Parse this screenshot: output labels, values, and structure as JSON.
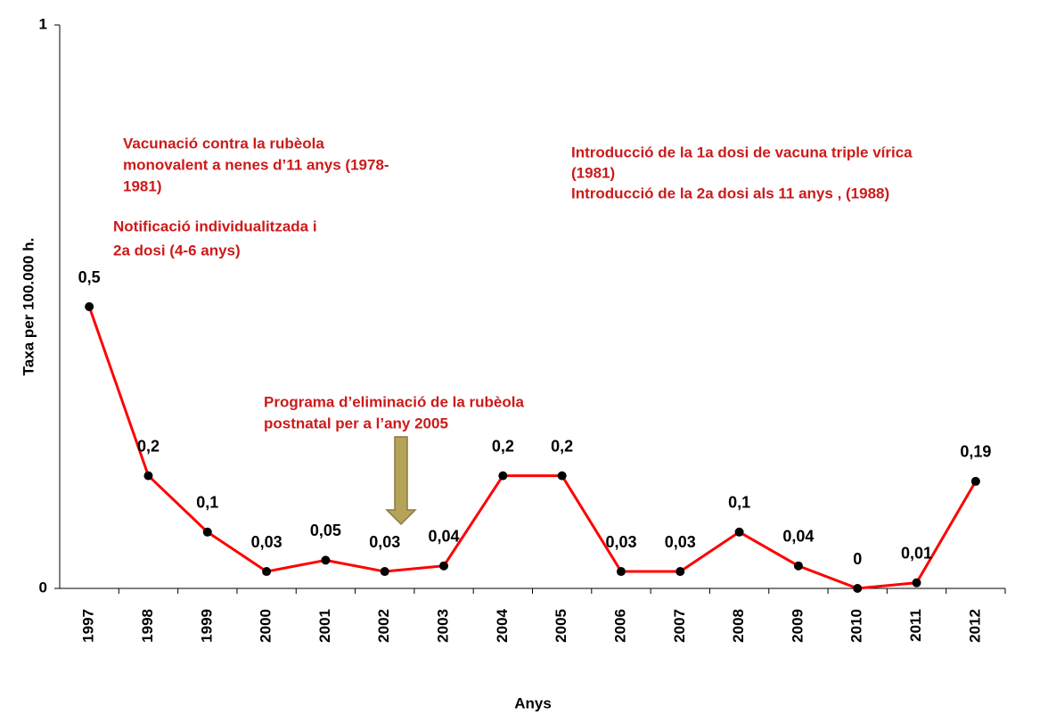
{
  "chart_data": {
    "type": "line",
    "y_label": "Taxa per 100.000 h.",
    "x_label": "Anys",
    "categories": [
      "1997",
      "1998",
      "1999",
      "2000",
      "2001",
      "2002",
      "2003",
      "2004",
      "2005",
      "2006",
      "2007",
      "2008",
      "2009",
      "2010",
      "2011",
      "2012"
    ],
    "values": [
      0.5,
      0.2,
      0.1,
      0.03,
      0.05,
      0.03,
      0.04,
      0.2,
      0.2,
      0.03,
      0.03,
      0.1,
      0.04,
      0,
      0.01,
      0.19
    ],
    "value_labels": [
      "0,5",
      "0,2",
      "0,1",
      "0,03",
      "0,05",
      "0,03",
      "0,04",
      "0,2",
      "0,2",
      "0,03",
      "0,03",
      "0,1",
      "0,04",
      "0",
      "0,01",
      "0,19"
    ],
    "color": "#ff0000",
    "marker_color": "#000000",
    "ylim": [
      0,
      1
    ],
    "yticks": [
      0,
      1
    ],
    "annotations": [
      {
        "lines": [
          "Vacunació contra la rubèola",
          "monovalent a nenes d’11 anys (1978-",
          "1981)"
        ]
      },
      {
        "lines": [
          "Notificació individualitzada i",
          "2a dosi (4-6 anys)"
        ]
      },
      {
        "lines": [
          "Introducció de la 1a dosi de vacuna triple vírica",
          "(1981)",
          "Introducció de la 2a dosi als 11 anys , (1988)"
        ]
      },
      {
        "lines": [
          "Programa d’eliminació de la rubèola",
          "postnatal per a l’any 2005"
        ]
      }
    ]
  }
}
